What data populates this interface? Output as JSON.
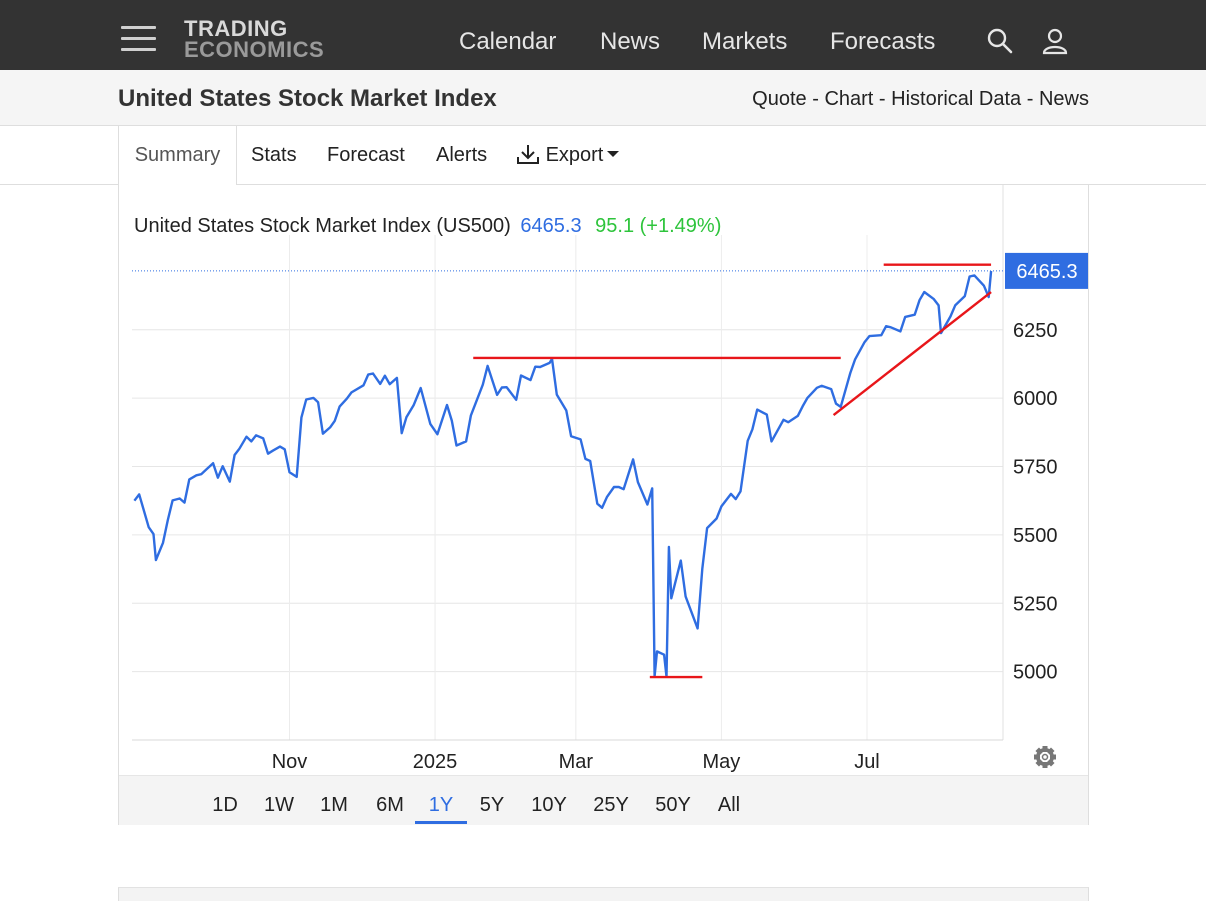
{
  "nav": {
    "logo_line1": "TRADING",
    "logo_line2": "ECONOMICS",
    "links": [
      "Calendar",
      "News",
      "Markets",
      "Forecasts"
    ]
  },
  "titlebar": {
    "title": "United States Stock Market Index",
    "links": [
      "Quote",
      "Chart",
      "Historical Data",
      "News"
    ],
    "separator": "-"
  },
  "tabs": {
    "items": [
      "Summary",
      "Stats",
      "Forecast",
      "Alerts"
    ],
    "export_label": "Export",
    "active": "Summary"
  },
  "chart_header": {
    "name": "United States Stock Market Index (US500)",
    "last": "6465.3",
    "change": "95.1",
    "change_pct": "(+1.49%)"
  },
  "range": {
    "options": [
      "1D",
      "1W",
      "1M",
      "6M",
      "1Y",
      "5Y",
      "10Y",
      "25Y",
      "50Y",
      "All"
    ],
    "active": "1Y"
  },
  "colors": {
    "line": "#2f6de1",
    "trend": "#e8161a",
    "positive": "#2ec43c",
    "nav_bg": "#333333"
  },
  "chart_data": {
    "type": "line",
    "title": "United States Stock Market Index (US500)",
    "series_name": "US500",
    "ylim": [
      4750,
      6560
    ],
    "y_ticks": [
      5000,
      5250,
      5500,
      5750,
      6000,
      6250
    ],
    "y_tick_labels": [
      "5000",
      "5250",
      "5500",
      "5750",
      "6000",
      "6250"
    ],
    "x_labels": [
      "Nov",
      "2025",
      "Mar",
      "May",
      "Jul"
    ],
    "x_tick_dates": [
      "2024-11-01",
      "2025-01-01",
      "2025-03-01",
      "2025-05-01",
      "2025-07-01"
    ],
    "last_value_label": "6465.3",
    "last_value": 6465.3,
    "grid": true,
    "dates": [
      "2024-08-28",
      "2024-08-30",
      "2024-09-03",
      "2024-09-05",
      "2024-09-06",
      "2024-09-09",
      "2024-09-11",
      "2024-09-13",
      "2024-09-16",
      "2024-09-18",
      "2024-09-20",
      "2024-09-23",
      "2024-09-25",
      "2024-09-27",
      "2024-09-30",
      "2024-10-02",
      "2024-10-04",
      "2024-10-07",
      "2024-10-09",
      "2024-10-11",
      "2024-10-14",
      "2024-10-16",
      "2024-10-18",
      "2024-10-21",
      "2024-10-23",
      "2024-10-25",
      "2024-10-28",
      "2024-10-30",
      "2024-11-01",
      "2024-11-04",
      "2024-11-06",
      "2024-11-08",
      "2024-11-11",
      "2024-11-13",
      "2024-11-15",
      "2024-11-18",
      "2024-11-20",
      "2024-11-22",
      "2024-11-25",
      "2024-11-27",
      "2024-12-02",
      "2024-12-04",
      "2024-12-06",
      "2024-12-09",
      "2024-12-11",
      "2024-12-13",
      "2024-12-16",
      "2024-12-18",
      "2024-12-20",
      "2024-12-23",
      "2024-12-26",
      "2024-12-30",
      "2025-01-02",
      "2025-01-06",
      "2025-01-08",
      "2025-01-10",
      "2025-01-14",
      "2025-01-16",
      "2025-01-21",
      "2025-01-23",
      "2025-01-27",
      "2025-01-29",
      "2025-01-31",
      "2025-02-04",
      "2025-02-06",
      "2025-02-10",
      "2025-02-12",
      "2025-02-14",
      "2025-02-18",
      "2025-02-19",
      "2025-02-21",
      "2025-02-25",
      "2025-02-27",
      "2025-03-03",
      "2025-03-05",
      "2025-03-07",
      "2025-03-10",
      "2025-03-12",
      "2025-03-14",
      "2025-03-17",
      "2025-03-19",
      "2025-03-21",
      "2025-03-25",
      "2025-03-27",
      "2025-03-31",
      "2025-04-02",
      "2025-04-03",
      "2025-04-04",
      "2025-04-07",
      "2025-04-08",
      "2025-04-09",
      "2025-04-10",
      "2025-04-14",
      "2025-04-16",
      "2025-04-21",
      "2025-04-23",
      "2025-04-25",
      "2025-04-29",
      "2025-05-01",
      "2025-05-05",
      "2025-05-07",
      "2025-05-09",
      "2025-05-12",
      "2025-05-14",
      "2025-05-16",
      "2025-05-20",
      "2025-05-22",
      "2025-05-27",
      "2025-05-29",
      "2025-06-02",
      "2025-06-04",
      "2025-06-06",
      "2025-06-10",
      "2025-06-12",
      "2025-06-16",
      "2025-06-18",
      "2025-06-20",
      "2025-06-24",
      "2025-06-26",
      "2025-06-30",
      "2025-07-02",
      "2025-07-07",
      "2025-07-09",
      "2025-07-11",
      "2025-07-15",
      "2025-07-17",
      "2025-07-21",
      "2025-07-23",
      "2025-07-25",
      "2025-07-29",
      "2025-07-31",
      "2025-08-01",
      "2025-08-05",
      "2025-08-07",
      "2025-08-11",
      "2025-08-13",
      "2025-08-15",
      "2025-08-19",
      "2025-08-21",
      "2025-08-22"
    ],
    "values": [
      5625,
      5648,
      5528,
      5503,
      5408,
      5471,
      5554,
      5626,
      5633,
      5618,
      5703,
      5718,
      5722,
      5738,
      5762,
      5709,
      5751,
      5695,
      5792,
      5815,
      5859,
      5842,
      5864,
      5853,
      5797,
      5808,
      5823,
      5813,
      5729,
      5712,
      5929,
      5995,
      6001,
      5985,
      5870,
      5893,
      5917,
      5969,
      5998,
      6021,
      6047,
      6086,
      6090,
      6052,
      6082,
      6051,
      6074,
      5872,
      5930,
      5974,
      6037,
      5906,
      5868,
      5975,
      5918,
      5827,
      5842,
      5937,
      6049,
      6118,
      6012,
      6039,
      6040,
      5994,
      6083,
      6066,
      6115,
      6114,
      6129,
      6144,
      6013,
      5955,
      5861,
      5849,
      5778,
      5770,
      5614,
      5599,
      5638,
      5675,
      5675,
      5667,
      5776,
      5693,
      5611,
      5670,
      4983,
      5074,
      5062,
      4982,
      5456,
      5268,
      5406,
      5275,
      5158,
      5376,
      5525,
      5560,
      5604,
      5650,
      5631,
      5659,
      5844,
      5886,
      5958,
      5940,
      5842,
      5921,
      5912,
      5935,
      5970,
      6000,
      6038,
      6045,
      6033,
      5980,
      5968,
      6092,
      6141,
      6205,
      6227,
      6230,
      6263,
      6259,
      6244,
      6297,
      6305,
      6358,
      6388,
      6362,
      6339,
      6238,
      6299,
      6340,
      6373,
      6445,
      6449,
      6411,
      6370,
      6465
    ],
    "annotations": [
      {
        "type": "line",
        "from": [
          "2025-01-17",
          6147
        ],
        "to": [
          "2025-06-20",
          6147
        ]
      },
      {
        "type": "line",
        "from": [
          "2025-04-01",
          4980
        ],
        "to": [
          "2025-04-23",
          4980
        ]
      },
      {
        "type": "line",
        "from": [
          "2025-06-17",
          5938
        ],
        "to": [
          "2025-08-22",
          6388
        ]
      },
      {
        "type": "line",
        "from": [
          "2025-07-08",
          6488
        ],
        "to": [
          "2025-08-22",
          6488
        ]
      }
    ]
  }
}
